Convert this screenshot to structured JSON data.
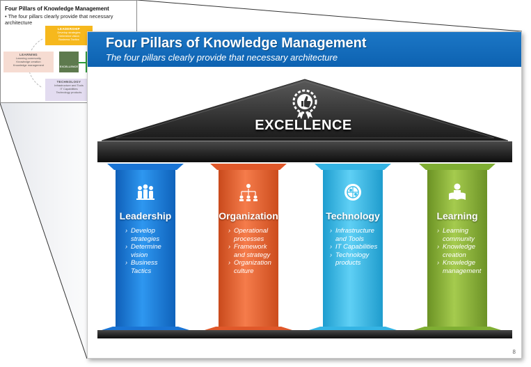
{
  "thumbnail": {
    "title": "Four Pillars of Knowledge Management",
    "bullet": "The four pillars clearly provide that necessary architecture",
    "boxes": [
      {
        "heading": "LEADERSHIP",
        "lines": "Develop strategies\nDetermine vision\nBusiness Tactics",
        "color": "#f6b81d"
      },
      {
        "heading": "LEARNING",
        "lines": "Learning community\nKnowledge creation\nKnowledge management",
        "color": "#f6dcd2"
      },
      {
        "heading": "TECHNOLOGY",
        "lines": "Infrastructure and Tools\nIT Capabilities\nTechnology products",
        "color": "#e3dcf0"
      },
      {
        "heading": "EXCELLENCE",
        "lines": "",
        "color": "#5e7a4e"
      }
    ]
  },
  "slide": {
    "title": "Four Pillars of Knowledge Management",
    "subtitle": "The four pillars clearly provide that necessary architecture",
    "roof_label": "EXCELLENCE",
    "page_number": "8",
    "colors": {
      "banner": "#1469b9",
      "roof": "#3a3a3a"
    },
    "pillars": [
      {
        "name": "Leadership",
        "icon": "people-group-icon",
        "color": "#1f86e6",
        "items": [
          "Develop\nstrategies",
          "Determine\nvision",
          "Business\nTactics"
        ]
      },
      {
        "name": "Organization",
        "icon": "org-chart-icon",
        "color": "#f26b3a",
        "items": [
          "Operational\nprocesses",
          "Framework\nand strategy",
          "Organization\nculture"
        ]
      },
      {
        "name": "Technology",
        "icon": "globe-network-icon",
        "color": "#3ec0ec",
        "items": [
          "Infrastructure\nand Tools",
          "IT Capabilities",
          "Technology\nproducts"
        ]
      },
      {
        "name": "Learning",
        "icon": "reading-person-icon",
        "color": "#8fbc3c",
        "items": [
          "Learning\ncommunity",
          "Knowledge\ncreation",
          "Knowledge\nmanagement"
        ]
      }
    ]
  }
}
